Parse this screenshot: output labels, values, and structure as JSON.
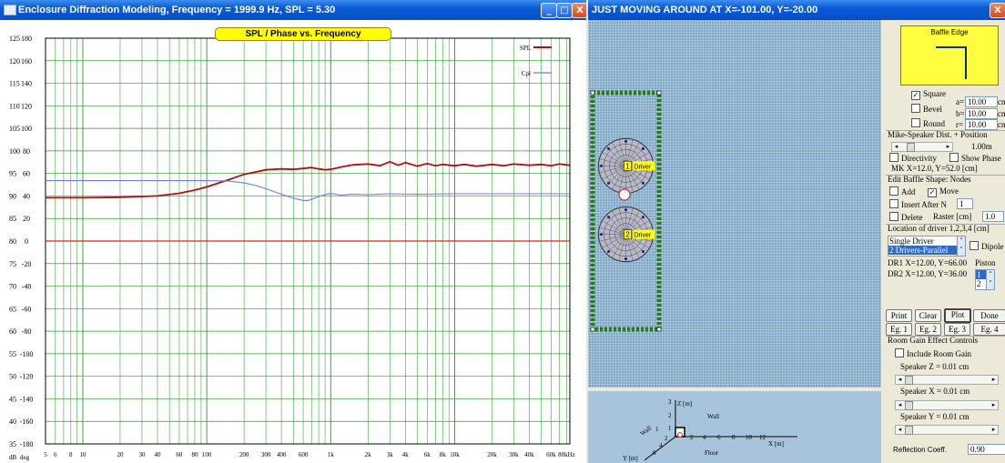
{
  "left_window": {
    "title": "Enclosure Diffraction Modeling, Frequency = 1999.9 Hz, SPL = 5.30",
    "min_glyph": "_",
    "max_glyph": "□",
    "close_glyph": "X"
  },
  "right_window": {
    "title": "JUST MOVING AROUND AT X=-101.00, Y=-20.00",
    "close_glyph": "X"
  },
  "chart_data": {
    "type": "line",
    "title": "SPL / Phase vs. Frequency",
    "x_scale": "log",
    "xlim": [
      5,
      85000
    ],
    "x_tick_labels": [
      {
        "f": 5,
        "label": "5"
      },
      {
        "f": 6,
        "label": "6"
      },
      {
        "f": 8,
        "label": "8"
      },
      {
        "f": 10,
        "label": "10"
      },
      {
        "f": 20,
        "label": "20"
      },
      {
        "f": 30,
        "label": "30"
      },
      {
        "f": 40,
        "label": "40"
      },
      {
        "f": 60,
        "label": "60"
      },
      {
        "f": 80,
        "label": "80"
      },
      {
        "f": 100,
        "label": "100"
      },
      {
        "f": 200,
        "label": "200"
      },
      {
        "f": 300,
        "label": "300"
      },
      {
        "f": 400,
        "label": "400"
      },
      {
        "f": 600,
        "label": "600"
      },
      {
        "f": 1000,
        "label": "1k"
      },
      {
        "f": 2000,
        "label": "2k"
      },
      {
        "f": 3000,
        "label": "3k"
      },
      {
        "f": 4000,
        "label": "4k"
      },
      {
        "f": 6000,
        "label": "6k"
      },
      {
        "f": 8000,
        "label": "8k"
      },
      {
        "f": 10000,
        "label": "10k"
      },
      {
        "f": 20000,
        "label": "20k"
      },
      {
        "f": 30000,
        "label": "30k"
      },
      {
        "f": 40000,
        "label": "40k"
      },
      {
        "f": 60000,
        "label": "60k"
      },
      {
        "f": 80000,
        "label": "80kHz"
      }
    ],
    "x_unit_label_left": "deg",
    "y_left_label": "dB",
    "ylim_db": [
      35,
      125
    ],
    "y_ticks_db": [
      "125",
      "120",
      "115",
      "110",
      "105",
      "100",
      "95",
      "90",
      "85",
      "80",
      "75",
      "70",
      "65",
      "60",
      "55",
      "50",
      "45",
      "40",
      "35"
    ],
    "y_ticks_deg": [
      "180",
      "160",
      "140",
      "120",
      "100",
      "80",
      "60",
      "40",
      "20",
      "0",
      "-20",
      "-40",
      "-60",
      "-80",
      "-100",
      "-120",
      "-140",
      "-160",
      "-180"
    ],
    "series": [
      {
        "name": "SPL",
        "color": "#b01010",
        "points": [
          [
            5,
            89.6
          ],
          [
            10,
            89.6
          ],
          [
            20,
            89.7
          ],
          [
            40,
            90.0
          ],
          [
            60,
            90.6
          ],
          [
            80,
            91.3
          ],
          [
            100,
            92.0
          ],
          [
            150,
            93.6
          ],
          [
            200,
            94.8
          ],
          [
            300,
            95.8
          ],
          [
            400,
            96.0
          ],
          [
            500,
            95.9
          ],
          [
            600,
            96.1
          ],
          [
            700,
            96.3
          ],
          [
            800,
            96.0
          ],
          [
            900,
            95.8
          ],
          [
            1000,
            95.9
          ],
          [
            1200,
            96.4
          ],
          [
            1500,
            96.9
          ],
          [
            2000,
            97.1
          ],
          [
            2500,
            96.7
          ],
          [
            3000,
            97.6
          ],
          [
            3500,
            96.8
          ],
          [
            4000,
            97.4
          ],
          [
            5000,
            96.6
          ],
          [
            6000,
            97.2
          ],
          [
            7000,
            96.7
          ],
          [
            8000,
            97.0
          ],
          [
            10000,
            96.7
          ],
          [
            12000,
            97.0
          ],
          [
            15000,
            96.6
          ],
          [
            20000,
            97.0
          ],
          [
            25000,
            96.7
          ],
          [
            30000,
            97.1
          ],
          [
            40000,
            96.8
          ],
          [
            50000,
            97.0
          ],
          [
            60000,
            96.7
          ],
          [
            70000,
            97.1
          ],
          [
            85000,
            96.8
          ]
        ]
      },
      {
        "name": "Cpl",
        "color": "#6a7fd0",
        "points": [
          [
            5,
            93.4
          ],
          [
            50,
            93.4
          ],
          [
            100,
            93.4
          ],
          [
            150,
            93.3
          ],
          [
            200,
            92.9
          ],
          [
            250,
            92.3
          ],
          [
            300,
            91.6
          ],
          [
            400,
            90.4
          ],
          [
            500,
            89.5
          ],
          [
            600,
            89.0
          ],
          [
            650,
            89.0
          ],
          [
            700,
            89.2
          ],
          [
            800,
            89.9
          ],
          [
            1000,
            90.6
          ],
          [
            1200,
            90.2
          ],
          [
            1500,
            90.4
          ],
          [
            2000,
            90.3
          ],
          [
            3000,
            90.5
          ],
          [
            5000,
            90.4
          ],
          [
            10000,
            90.5
          ],
          [
            85000,
            90.5
          ]
        ]
      },
      {
        "name": "",
        "color": "#e02020",
        "points": [
          [
            5,
            80
          ],
          [
            85000,
            80
          ]
        ]
      }
    ]
  },
  "driver_view": {
    "baffle": {
      "width_cm": 24,
      "height_cm": 102
    },
    "drivers": [
      {
        "label": "1",
        "tag": "Driver",
        "x_cm": 12.0,
        "y_cm": 66.0
      },
      {
        "label": "2",
        "tag": "Driver",
        "x_cm": 12.0,
        "y_cm": 36.0
      }
    ]
  },
  "axes3d": {
    "z_label": "Z [m]",
    "x_label": "X [m]",
    "y_label": "Y [m]",
    "wall_label": "Wall",
    "floor_label": "Floor",
    "wall_left_label": "Wall",
    "z_ticks": [
      "3",
      "2",
      "1"
    ],
    "x_ticks": [
      "2",
      "4",
      "6",
      "8",
      "10",
      "12"
    ],
    "y_ticks": [
      "1",
      "2",
      "4",
      "6"
    ]
  },
  "panel": {
    "baffle_edge_title": "Baffle Edge",
    "square_label": "Square",
    "square_checked": true,
    "bevel_label": "Bevel",
    "bevel_checked": false,
    "round_label": "Round",
    "round_checked": false,
    "a_label": "a=",
    "a_value": "10.00",
    "a_unit": "cm",
    "b_label": "b=",
    "b_value": "10.00",
    "b_unit": "cm",
    "r_label": "r=",
    "r_value": "10.00",
    "r_unit": "cm",
    "mike_speaker_label": "Mike-Speaker Dist. + Position",
    "distance_value": "1.00m",
    "directivity_label": "Directivity",
    "directivity_checked": false,
    "show_phase_label": "Show Phase",
    "show_phase_checked": false,
    "mk_position": "MK X=12.0, Y=52.0 [cm]",
    "edit_nodes_label": "Edit Baffle Shape: Nodes",
    "add_label": "Add",
    "add_checked": false,
    "move_label": "Move",
    "move_checked": true,
    "insert_after_label": "Insert After N",
    "insert_after_checked": false,
    "insert_after_value": "1",
    "delete_label": "Delete",
    "delete_checked": false,
    "raster_label": "Raster [cm]",
    "raster_value": "1.0",
    "location_label": "Location of driver 1,2,3,4 [cm]",
    "driver_mode_options": [
      "Single Driver",
      "2 Drivers-Parallel"
    ],
    "driver_mode_selected": 1,
    "dipole_label": "Dipole",
    "dipole_checked": false,
    "dr1_location": "DR1 X=12.00, Y=66.00",
    "dr2_location": "DR2 X=12.00, Y=36.00",
    "piston_label": "Piston",
    "piston_options": [
      "1",
      "2"
    ],
    "piston_selected": 0,
    "print_label": "Print",
    "clear_label": "Clear",
    "plot_label": "Plot",
    "done_label": "Done",
    "eg1_label": "Eg. 1",
    "eg2_label": "Eg. 2",
    "eg3_label": "Eg. 3",
    "eg4_label": "Eg. 4",
    "room_gain_title": "Room Gain Effect Controls",
    "include_room_gain_label": "Include Room Gain",
    "include_room_gain_checked": false,
    "speaker_z_label": "Speaker Z = 0.01 cm",
    "speaker_x_label": "Speaker X = 0.01 cm",
    "speaker_y_label": "Speaker Y = 0.01 cm",
    "reflection_label": "Reflection Coeff.",
    "reflection_value": "0.90"
  }
}
